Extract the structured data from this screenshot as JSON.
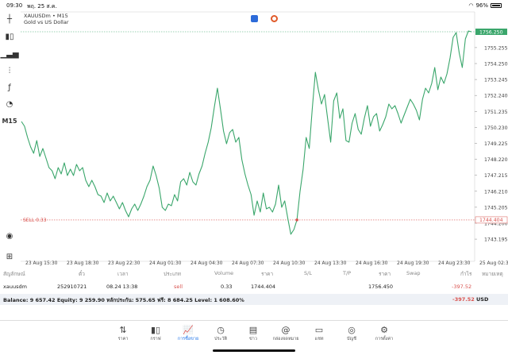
{
  "status": {
    "time": "09:30",
    "date": "พฤ. 25 ส.ค.",
    "battery": "96%"
  },
  "toolbar": {
    "timeframe": "M15",
    "icons": [
      "crosshair-icon",
      "candles-icon",
      "indicator-icon",
      "objects-icon",
      "function-icon",
      "shapes-icon"
    ]
  },
  "chart_header": {
    "symbol": "XAUUSDm • M15",
    "description": "Gold vs US Dollar"
  },
  "order_line_label": "SELL 0.33",
  "chart_data": {
    "type": "line",
    "title": "",
    "xlabel": "",
    "ylabel": "",
    "ylim": [
      1742.0,
      1757.5
    ],
    "grid": false,
    "y_ticks": [
      "1755.255",
      "1754.250",
      "1753.245",
      "1752.240",
      "1751.235",
      "1750.230",
      "1749.225",
      "1748.220",
      "1747.215",
      "1746.210",
      "1745.205",
      "1744.200",
      "1743.195"
    ],
    "y_tick_values": [
      1755.255,
      1754.25,
      1753.245,
      1752.24,
      1751.235,
      1750.23,
      1749.225,
      1748.22,
      1747.215,
      1746.21,
      1745.205,
      1744.2,
      1743.195
    ],
    "x_ticks": [
      "23 Aug 15:30",
      "23 Aug 18:30",
      "23 Aug 22:30",
      "24 Aug 01:30",
      "24 Aug 04:30",
      "24 Aug 07:30",
      "24 Aug 10:30",
      "24 Aug 13:30",
      "24 Aug 16:30",
      "24 Aug 19:30",
      "24 Aug 23:30",
      "25 Aug 02:30"
    ],
    "current_price_label": "1756.250",
    "current_price": 1756.25,
    "sell_price_label": "1744.404",
    "sell_price": 1744.404,
    "series": [
      {
        "values": [
          1750.6,
          1750.3,
          1749.6,
          1749.0,
          1748.6,
          1749.4,
          1748.4,
          1748.9,
          1748.3,
          1747.7,
          1747.5,
          1747.0,
          1747.7,
          1747.3,
          1748.0,
          1747.2,
          1747.6,
          1747.2,
          1747.9,
          1747.5,
          1747.7,
          1746.9,
          1746.5,
          1746.9,
          1746.5,
          1746.0,
          1745.9,
          1745.5,
          1746.1,
          1745.6,
          1745.9,
          1745.5,
          1745.1,
          1745.5,
          1745.0,
          1744.6,
          1745.1,
          1745.4,
          1745.0,
          1745.4,
          1745.9,
          1746.5,
          1746.9,
          1747.8,
          1747.2,
          1746.4,
          1745.2,
          1745.0,
          1745.4,
          1745.3,
          1746.0,
          1745.6,
          1746.8,
          1747.0,
          1746.6,
          1747.4,
          1746.8,
          1746.6,
          1747.3,
          1747.8,
          1748.6,
          1749.3,
          1750.2,
          1751.5,
          1752.7,
          1751.4,
          1750.0,
          1749.2,
          1749.9,
          1750.1,
          1749.3,
          1749.6,
          1748.2,
          1747.3,
          1746.6,
          1746.0,
          1744.7,
          1745.6,
          1744.9,
          1746.1,
          1745.1,
          1745.2,
          1744.9,
          1745.4,
          1746.6,
          1745.2,
          1745.6,
          1744.5,
          1743.5,
          1743.8,
          1744.4,
          1746.2,
          1747.6,
          1749.6,
          1748.9,
          1751.4,
          1753.7,
          1752.6,
          1751.7,
          1752.3,
          1750.8,
          1749.3,
          1751.9,
          1752.4,
          1750.8,
          1751.4,
          1749.4,
          1749.3,
          1750.5,
          1751.1,
          1750.1,
          1749.8,
          1750.8,
          1751.6,
          1750.3,
          1750.9,
          1751.1,
          1750.0,
          1750.4,
          1750.9,
          1751.7,
          1751.4,
          1751.6,
          1751.1,
          1750.5,
          1751.0,
          1751.5,
          1752.0,
          1751.7,
          1751.3,
          1750.7,
          1752.0,
          1752.7,
          1752.4,
          1753.0,
          1754.0,
          1752.6,
          1753.4,
          1753.0,
          1753.6,
          1754.6,
          1755.9,
          1756.2,
          1754.9,
          1754.0,
          1755.8,
          1756.3,
          1756.25
        ]
      }
    ]
  },
  "positions_table": {
    "headers": [
      "สัญลักษณ์",
      "ตั๋ว",
      "เวลา",
      "ประเภท",
      "Volume",
      "ราคา",
      "S/L",
      "T/P",
      "ราคา",
      "Swap",
      "กำไร",
      "หมายเหตุ"
    ],
    "row": {
      "symbol": "xauusdm",
      "ticket": "252910721",
      "time": "08.24 13:38",
      "type": "sell",
      "volume": "0.33",
      "open_price": "1744.404",
      "current_price": "1756.450",
      "profit": "-397.52"
    }
  },
  "balance": {
    "text": "Balance: 9 657.42 Equity: 9 259.90 หลักประกัน: 575.65 ฟรี: 8 684.25 Level: 1 608.60%",
    "profit": "-397.52",
    "currency": "USD"
  },
  "tabs": [
    {
      "label": "ราคา",
      "icon": "quotes-icon",
      "active": false
    },
    {
      "label": "กราฟ",
      "icon": "chart-icon",
      "active": false
    },
    {
      "label": "การซื้อขาย",
      "icon": "trade-icon",
      "active": true
    },
    {
      "label": "ประวัติ",
      "icon": "history-icon",
      "active": false
    },
    {
      "label": "ข่าว",
      "icon": "news-icon",
      "active": false
    },
    {
      "label": "กล่องจดหมาย",
      "icon": "mailbox-icon",
      "active": false
    },
    {
      "label": "แชท",
      "icon": "chat-icon",
      "active": false
    },
    {
      "label": "บัญชี",
      "icon": "accounts-icon",
      "active": false
    },
    {
      "label": "การตั้งค่า",
      "icon": "settings-icon",
      "active": false
    }
  ],
  "colors": {
    "line": "#3aa66b",
    "sell": "#d9534f",
    "accent": "#1e73e8",
    "price_tag": "#3aa66b"
  }
}
